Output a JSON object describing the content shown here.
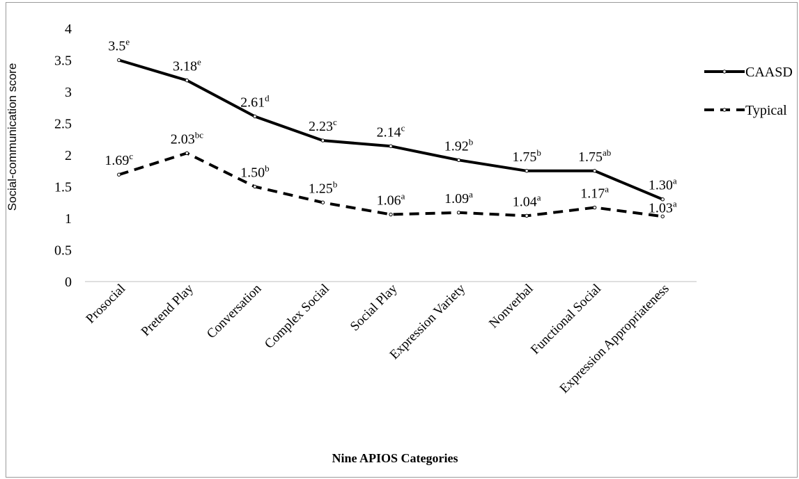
{
  "chart_data": {
    "type": "line",
    "title": "",
    "xlabel": "Nine APIOS Categories",
    "ylabel": "Social-communication score",
    "ylim": [
      0,
      4
    ],
    "yticks": [
      "0",
      "0.5",
      "1",
      "1.5",
      "2",
      "2.5",
      "3",
      "3.5",
      "4"
    ],
    "grid": false,
    "legend_position": "right",
    "categories": [
      "Prosocial",
      "Pretend Play",
      "Conversation",
      "Complex Social",
      "Social Play",
      "Expression Variety",
      "Nonverbal",
      "Functional Social",
      "Expression Appropriateness"
    ],
    "series": [
      {
        "name": "CAASD",
        "style": "solid",
        "color": "#000000",
        "values": [
          3.5,
          3.18,
          2.61,
          2.23,
          2.14,
          1.92,
          1.75,
          1.75,
          1.3
        ],
        "labels": [
          "3.5",
          "3.18",
          "2.61",
          "2.23",
          "2.14",
          "1.92",
          "1.75",
          "1.75",
          "1.30"
        ],
        "superscripts": [
          "e",
          "e",
          "d",
          "c",
          "c",
          "b",
          "b",
          "ab",
          "a"
        ]
      },
      {
        "name": "Typical",
        "style": "dashed",
        "color": "#000000",
        "values": [
          1.69,
          2.03,
          1.5,
          1.25,
          1.06,
          1.09,
          1.04,
          1.17,
          1.03
        ],
        "labels": [
          "1.69",
          "2.03",
          "1.50",
          "1.25",
          "1.06",
          "1.09",
          "1.04",
          "1.17",
          "1.03"
        ],
        "superscripts": [
          "c",
          "bc",
          "b",
          "b",
          "a",
          "a",
          "a",
          "a",
          "a"
        ]
      }
    ]
  }
}
